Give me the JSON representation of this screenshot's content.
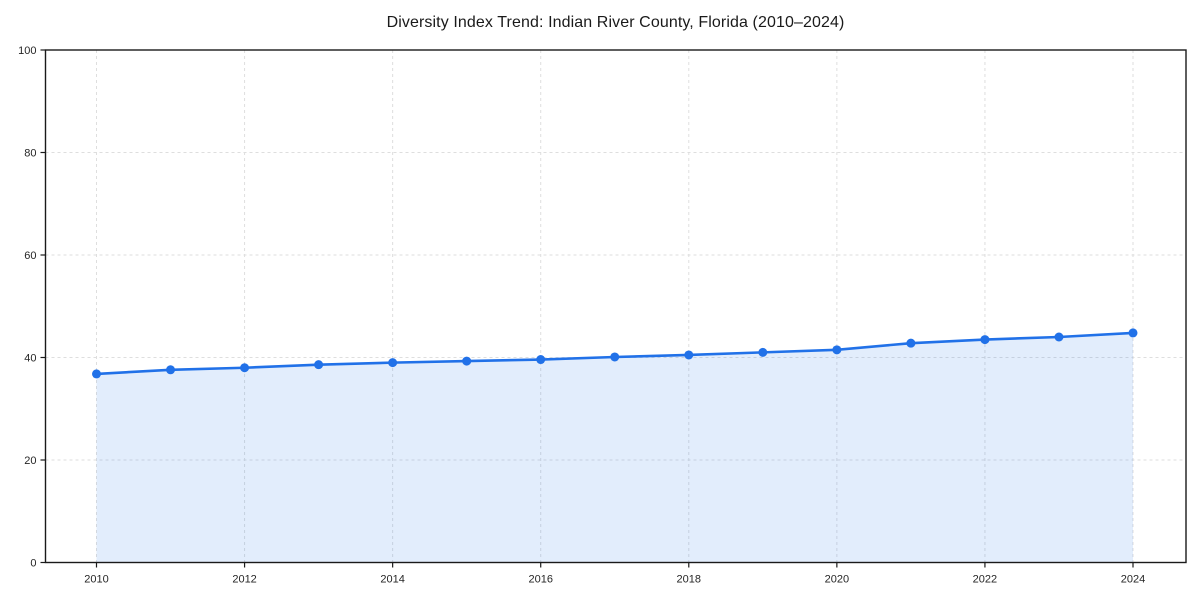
{
  "title": "Diversity Index Trend: Indian River County, Florida (2010–2024)",
  "colors": {
    "line": "#2171e8",
    "marker": "#2171e8",
    "area_fill": "rgba(33,113,232,0.13)",
    "grid": "#dedede",
    "spine": "#1a1a1a",
    "tick_label": "#262626",
    "background": "#ffffff"
  },
  "chart_data": {
    "type": "line",
    "title": "Diversity Index Trend: Indian River County, Florida (2010–2024)",
    "xlabel": "",
    "ylabel": "",
    "x": [
      2010,
      2011,
      2012,
      2013,
      2014,
      2015,
      2016,
      2017,
      2018,
      2019,
      2020,
      2021,
      2022,
      2023,
      2024
    ],
    "series": [
      {
        "name": "Diversity Index",
        "values": [
          36.8,
          37.6,
          38.0,
          38.6,
          39.0,
          39.3,
          39.6,
          40.1,
          40.5,
          41.0,
          41.5,
          42.8,
          43.5,
          44.0,
          44.8
        ]
      }
    ],
    "area_fill": true,
    "markers": true,
    "ylim": [
      0,
      100
    ],
    "yticks": [
      0,
      20,
      40,
      60,
      80,
      100
    ],
    "xticks": [
      2010,
      2012,
      2014,
      2016,
      2018,
      2020,
      2022,
      2024
    ],
    "grid": true,
    "grid_style": "dashed",
    "legend": "none"
  }
}
